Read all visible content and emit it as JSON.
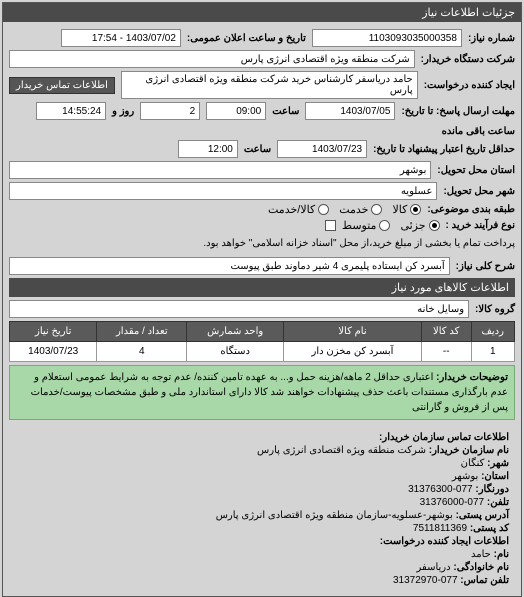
{
  "panelTitle": "جزئیات اطلاعات نیاز",
  "rows": {
    "reqNo": {
      "label": "شماره نیاز:",
      "value": "1103093035000358"
    },
    "announceDate": {
      "label": "تاریخ و ساعت اعلان عمومی:",
      "value": "1403/07/02 - 17:54"
    },
    "buyerName": {
      "label": "شرکت دستگاه خریدار:",
      "value": "شرکت منطقه ویژه اقتصادی انرژی پارس"
    },
    "creator": {
      "label": "ایجاد کننده درخواست:",
      "value": "حامد دریاسفر کارشناس خرید شرکت منطقه ویژه اقتصادی انرژی پارس"
    },
    "contactBtn": "اطلاعات تماس خریدار",
    "deadline": {
      "label": "مهلت ارسال پاسخ: تا تاریخ:",
      "date": "1403/07/05",
      "timeLabel": "ساعت",
      "time": "09:00"
    },
    "remain": {
      "value1": "2",
      "label1": "روز و",
      "value2": "14:55:24",
      "label2": "ساعت باقی مانده"
    },
    "minValidity": {
      "label": "حداقل تاریخ اعتبار پیشنهاد تا تاریخ:",
      "date": "1403/07/23",
      "timeLabel": "ساعت",
      "time": "12:00"
    },
    "province": {
      "label": "استان محل تحویل:",
      "value": "بوشهر"
    },
    "city": {
      "label": "شهر محل تحویل:",
      "value": "عسلویه"
    },
    "category": {
      "label": "طبقه بندی موضوعی:",
      "options": [
        {
          "label": "کالا",
          "checked": true
        },
        {
          "label": "خدمت",
          "checked": false
        },
        {
          "label": "کالا/خدمت",
          "checked": false
        }
      ]
    },
    "procType": {
      "label": "نوع فرآیند خرید :",
      "options": [
        {
          "label": "جزئی",
          "checked": true
        },
        {
          "label": "متوسط",
          "checked": false
        }
      ],
      "note": "پرداخت تمام یا بخشی از مبلغ خرید،از محل \"اسناد خزانه اسلامی\" خواهد بود.",
      "checkbox": false
    },
    "desc": {
      "label": "شرح کلی نیاز:",
      "value": "آبسرد کن ایستاده پلیمری 4 شیر دماوند طبق پیوست"
    }
  },
  "itemsTitle": "اطلاعات کالاهای مورد نیاز",
  "group": {
    "label": "گروه کالا:",
    "value": "وسایل خانه"
  },
  "table": {
    "headers": [
      "ردیف",
      "کد کالا",
      "نام کالا",
      "واحد شمارش",
      "تعداد / مقدار",
      "تاریخ نیاز"
    ],
    "rows": [
      [
        "1",
        "--",
        "آبسرد کن مخزن دار",
        "دستگاه",
        "4",
        "1403/07/23"
      ]
    ]
  },
  "note": {
    "label": "توضیحات خریدار:",
    "text": "اعتباری حداقل 2 ماهه/هزینه حمل و... به عهده تامین کننده/ عدم توجه به شرایط عمومی استعلام و عدم بارگذاری مستندات باعث حذف پیشنهادات خواهند شد کالا دارای استاندارد ملی و طبق مشخصات پیوست/خدمات پس از فروش و گارانتی"
  },
  "contact": {
    "title": "اطلاعات تماس سازمان خریدار:",
    "lines": [
      {
        "k": "نام سازمان خریدار:",
        "v": "شرکت منطقه ویژه اقتصادی انرژی پارس"
      },
      {
        "k": "شهر:",
        "v": "کنگان"
      },
      {
        "k": "استان:",
        "v": "بوشهر"
      },
      {
        "k": "دورنگار:",
        "v": "077-31376300"
      },
      {
        "k": "تلفن:",
        "v": "077-31376000"
      },
      {
        "k": "آدرس پستی:",
        "v": "بوشهر-عسلویه-سازمان منطقه ویژه اقتصادی انرژی پارس"
      },
      {
        "k": "کد پستی:",
        "v": "7511811369"
      }
    ],
    "creatorTitle": "اطلاعات ایجاد کننده درخواست:",
    "creatorLines": [
      {
        "k": "نام:",
        "v": "حامد"
      },
      {
        "k": "نام خانوادگی:",
        "v": "دریاسفر"
      },
      {
        "k": "تلفن تماس:",
        "v": "077-31372970"
      }
    ]
  }
}
